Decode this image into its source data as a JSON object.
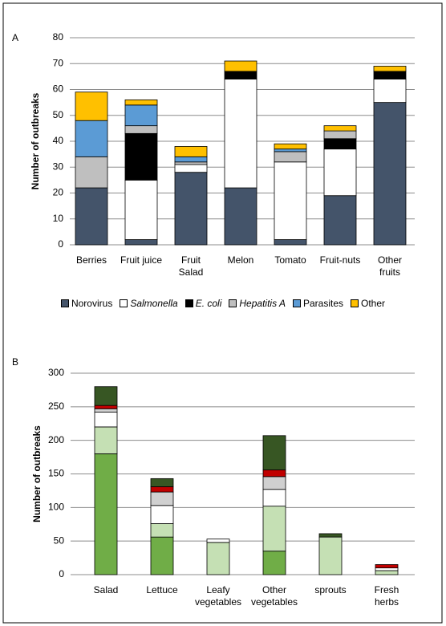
{
  "chart_data": [
    {
      "type": "bar",
      "stacked": true,
      "panel_label": "A",
      "ylabel": "Number of outbreaks",
      "categories": [
        "Berries",
        "Fruit juice",
        "Fruit\nSalad",
        "Melon",
        "Tomato",
        "Fruit-nuts",
        "Other\nfruits"
      ],
      "series": [
        {
          "name": "Norovirus",
          "color": "#44546a",
          "values": [
            22,
            2,
            28,
            22,
            2,
            19,
            55
          ]
        },
        {
          "name": "Salmonella",
          "color": "#ffffff",
          "values": [
            0,
            23,
            3,
            42,
            30,
            18,
            9
          ]
        },
        {
          "name": "E. coli",
          "color": "#000000",
          "values": [
            0,
            18,
            0,
            3,
            0,
            4,
            3
          ]
        },
        {
          "name": "Hepatitis A",
          "color": "#bfbfbf",
          "values": [
            12,
            3,
            1,
            0,
            4,
            3,
            0
          ]
        },
        {
          "name": "Parasites",
          "color": "#5b9bd5",
          "values": [
            14,
            8,
            2,
            0,
            1,
            0,
            0
          ]
        },
        {
          "name": "Other",
          "color": "#ffc000",
          "values": [
            11,
            2,
            4,
            4,
            2,
            2,
            2
          ]
        }
      ],
      "ylim": [
        0,
        80
      ],
      "yticks": [
        0,
        10,
        20,
        30,
        40,
        50,
        60,
        70,
        80
      ],
      "grid": true,
      "legend": "bottom"
    },
    {
      "type": "bar",
      "stacked": true,
      "panel_label": "B",
      "ylabel": "Number of outbreaks",
      "categories": [
        "Salad",
        "Lettuce",
        "Leafy\nvegetables",
        "Other\nvegetables",
        "sprouts",
        "Fresh\nherbs"
      ],
      "series": [
        {
          "color": "#70ad47",
          "values": [
            180,
            56,
            0,
            35,
            0,
            0
          ]
        },
        {
          "color": "#c5e0b4",
          "values": [
            40,
            20,
            48,
            67,
            56,
            6
          ]
        },
        {
          "color": "#ffffff",
          "values": [
            22,
            27,
            5,
            25,
            0,
            4
          ]
        },
        {
          "color": "#d0d0d0",
          "values": [
            5,
            20,
            0,
            19,
            0,
            0
          ]
        },
        {
          "color": "#c00000",
          "values": [
            5,
            8,
            0,
            10,
            0,
            5
          ]
        },
        {
          "color": "#375623",
          "values": [
            28,
            12,
            0,
            51,
            5,
            0
          ]
        }
      ],
      "ylim": [
        0,
        300
      ],
      "yticks": [
        0,
        50,
        100,
        150,
        200,
        250,
        300
      ],
      "grid": true
    }
  ]
}
